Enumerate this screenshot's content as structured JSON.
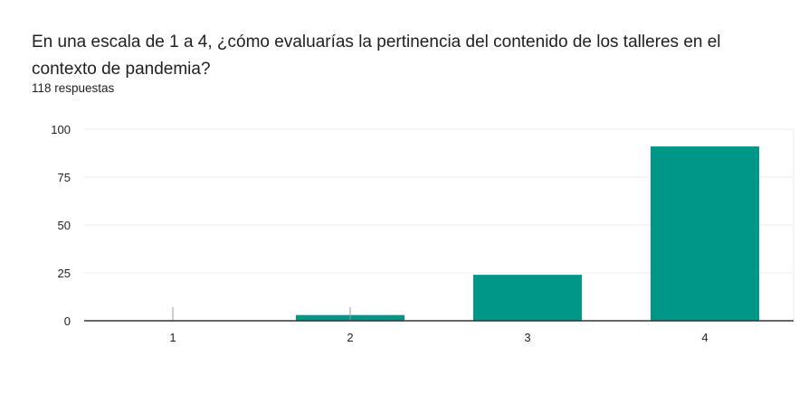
{
  "question": "En una escala de 1 a 4, ¿cómo evaluarías la pertinencia del contenido de los talleres en el contexto de pandemia?",
  "response_count": "118 respuestas",
  "chart_data": {
    "type": "bar",
    "categories": [
      "1",
      "2",
      "3",
      "4"
    ],
    "values": [
      0,
      3,
      24,
      91
    ],
    "yticks": [
      "0",
      "25",
      "50",
      "75",
      "100"
    ],
    "ylim": [
      0,
      100
    ],
    "grid": true,
    "bar_color": "#009688"
  }
}
